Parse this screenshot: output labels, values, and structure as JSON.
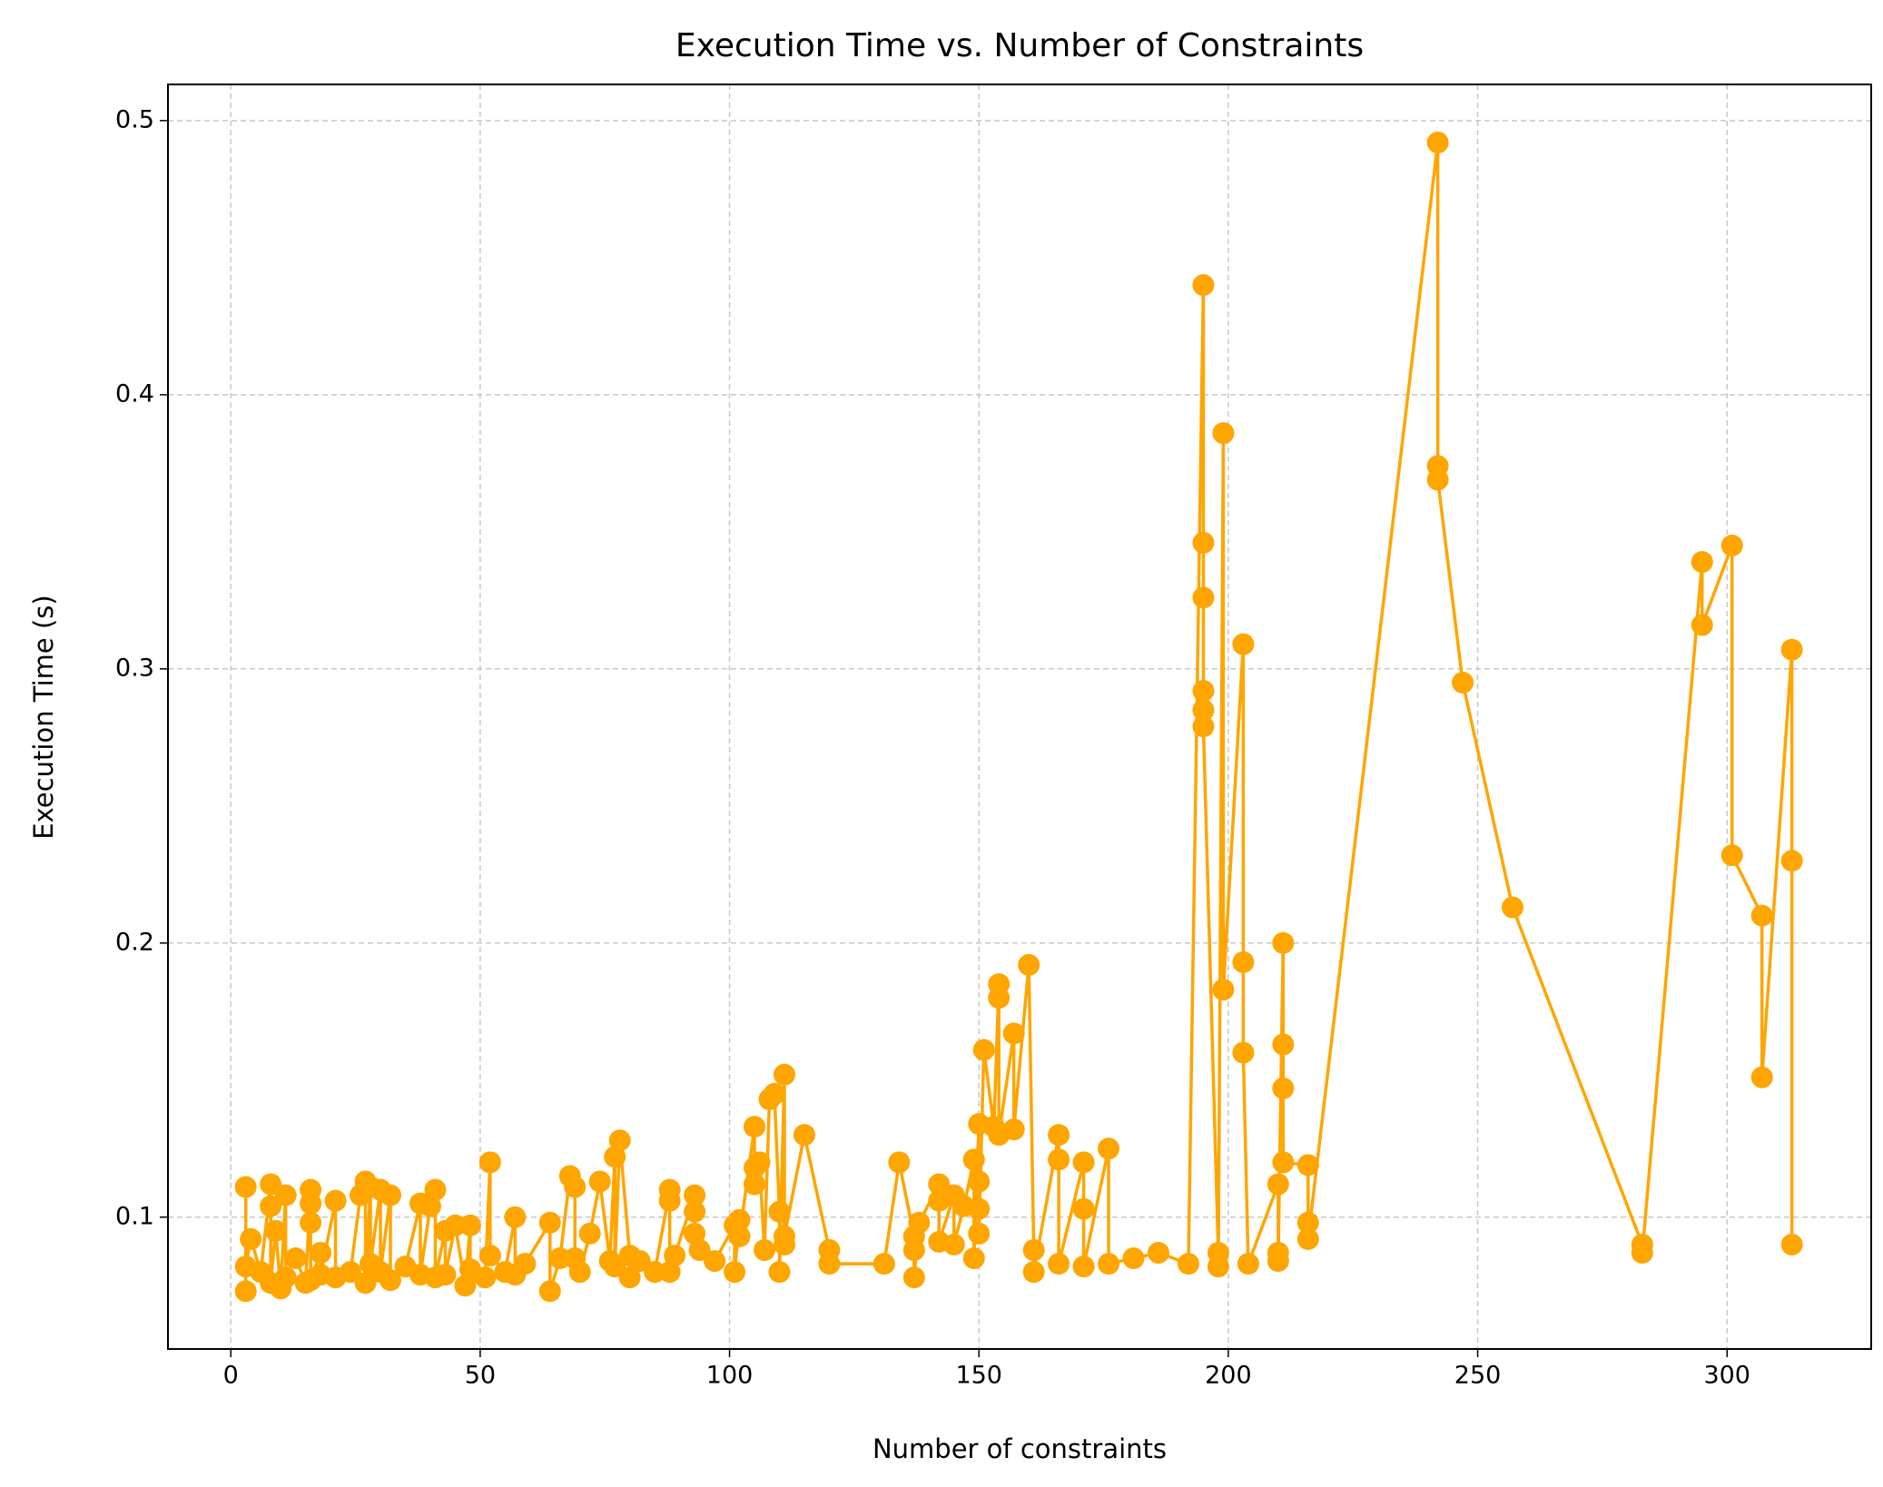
{
  "chart_data": {
    "type": "line",
    "title": "Execution Time vs. Number of Constraints",
    "x_label": "Number of constraints",
    "y_label": "Execution Time (s)",
    "color": "#ffa500",
    "grid": true,
    "xlim": [
      -12.6,
      328.9
    ],
    "ylim": [
      0.0519,
      0.5132
    ],
    "xticks": [
      0,
      50,
      100,
      150,
      200,
      250,
      300
    ],
    "yticks": [
      0.1,
      0.2,
      0.3,
      0.4,
      0.5
    ],
    "x": [
      3,
      3,
      3,
      4,
      6,
      8,
      8,
      8,
      9,
      10,
      11,
      11,
      13,
      15,
      16,
      16,
      16,
      16,
      18,
      18,
      21,
      21,
      24,
      26,
      27,
      27,
      28,
      28,
      30,
      30,
      32,
      32,
      35,
      38,
      38,
      40,
      41,
      41,
      43,
      43,
      45,
      47,
      48,
      48,
      51,
      52,
      52,
      55,
      57,
      57,
      59,
      64,
      64,
      66,
      68,
      69,
      69,
      70,
      72,
      74,
      76,
      77,
      77,
      78,
      80,
      80,
      82,
      85,
      88,
      88,
      88,
      89,
      93,
      93,
      93,
      94,
      97,
      101,
      101,
      102,
      102,
      105,
      105,
      105,
      106,
      107,
      108,
      109,
      110,
      110,
      111,
      111,
      111,
      115,
      120,
      120,
      131,
      134,
      137,
      137,
      137,
      138,
      142,
      142,
      142,
      145,
      145,
      147,
      149,
      149,
      150,
      150,
      150,
      150,
      151,
      153,
      154,
      154,
      154,
      157,
      157,
      160,
      161,
      161,
      166,
      166,
      166,
      171,
      171,
      171,
      176,
      176,
      181,
      186,
      192,
      195,
      195,
      195,
      195,
      195,
      195,
      198,
      198,
      199,
      199,
      203,
      203,
      203,
      204,
      210,
      210,
      210,
      211,
      211,
      211,
      211,
      216,
      216,
      216,
      242,
      242,
      242,
      247,
      257,
      283,
      283,
      295,
      295,
      301,
      301,
      307,
      307,
      313,
      313,
      313
    ],
    "values": [
      0.111,
      0.073,
      0.082,
      0.092,
      0.08,
      0.112,
      0.104,
      0.076,
      0.095,
      0.074,
      0.108,
      0.078,
      0.085,
      0.076,
      0.11,
      0.105,
      0.098,
      0.077,
      0.087,
      0.079,
      0.106,
      0.078,
      0.08,
      0.108,
      0.113,
      0.076,
      0.111,
      0.083,
      0.11,
      0.08,
      0.108,
      0.077,
      0.082,
      0.105,
      0.079,
      0.104,
      0.11,
      0.078,
      0.095,
      0.079,
      0.097,
      0.075,
      0.097,
      0.081,
      0.078,
      0.12,
      0.086,
      0.08,
      0.1,
      0.079,
      0.083,
      0.098,
      0.073,
      0.085,
      0.115,
      0.111,
      0.085,
      0.08,
      0.094,
      0.113,
      0.084,
      0.122,
      0.082,
      0.128,
      0.086,
      0.078,
      0.084,
      0.08,
      0.11,
      0.106,
      0.08,
      0.086,
      0.108,
      0.102,
      0.094,
      0.088,
      0.084,
      0.097,
      0.08,
      0.099,
      0.093,
      0.133,
      0.118,
      0.112,
      0.12,
      0.088,
      0.143,
      0.145,
      0.102,
      0.08,
      0.152,
      0.09,
      0.093,
      0.13,
      0.088,
      0.083,
      0.083,
      0.12,
      0.093,
      0.088,
      0.078,
      0.098,
      0.112,
      0.106,
      0.091,
      0.108,
      0.09,
      0.104,
      0.121,
      0.085,
      0.134,
      0.113,
      0.103,
      0.094,
      0.161,
      0.133,
      0.185,
      0.18,
      0.13,
      0.167,
      0.132,
      0.192,
      0.088,
      0.08,
      0.13,
      0.121,
      0.083,
      0.12,
      0.103,
      0.082,
      0.125,
      0.083,
      0.085,
      0.087,
      0.083,
      0.44,
      0.346,
      0.326,
      0.292,
      0.285,
      0.279,
      0.087,
      0.082,
      0.386,
      0.183,
      0.309,
      0.193,
      0.16,
      0.083,
      0.112,
      0.087,
      0.084,
      0.2,
      0.163,
      0.147,
      0.12,
      0.119,
      0.098,
      0.092,
      0.492,
      0.374,
      0.369,
      0.295,
      0.213,
      0.09,
      0.087,
      0.339,
      0.316,
      0.345,
      0.232,
      0.21,
      0.151,
      0.307,
      0.23,
      0.09
    ]
  }
}
